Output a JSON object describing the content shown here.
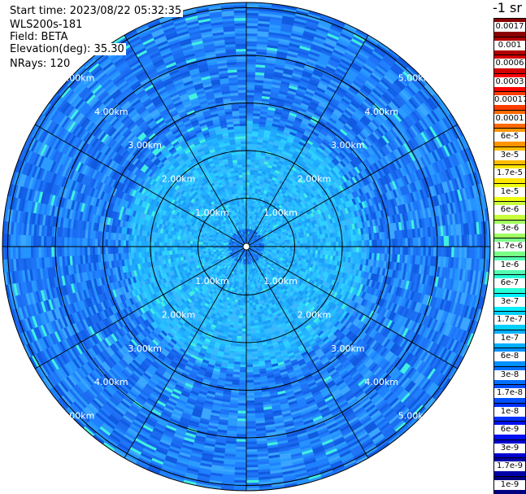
{
  "header": {
    "start_time": "Start time: 2023/08/22 05:32:35",
    "instrument": "WLS200s-181",
    "field": "Field: BETA",
    "elevation": "Elevation(deg): 35.30",
    "nrays": "NRays: 120"
  },
  "colorbar": {
    "title": "-1 sr",
    "labels": [
      "0.0017",
      "0.001",
      "0.0006",
      "0.0003",
      "0.00017",
      "0.0001",
      "6e-5",
      "3e-5",
      "1.7e-5",
      "1e-5",
      "6e-6",
      "3e-6",
      "1.7e-6",
      "1e-6",
      "6e-7",
      "3e-7",
      "1.7e-7",
      "1e-7",
      "6e-8",
      "3e-8",
      "1.7e-8",
      "1e-8",
      "6e-9",
      "3e-9",
      "1.7e-9",
      "1e-9"
    ],
    "colors": [
      "#8b0000",
      "#b30000",
      "#d40000",
      "#ff0000",
      "#ff3c00",
      "#ff6a00",
      "#ff9400",
      "#ffbd00",
      "#ffe600",
      "#f0ff10",
      "#c8ff3c",
      "#a0ff60",
      "#78ff88",
      "#50ffb0",
      "#28ffd8",
      "#00f0ff",
      "#00d0ff",
      "#00b0ff",
      "#0090ff",
      "#0070ff",
      "#0050ff",
      "#0030ff",
      "#0010f0",
      "#0000d0",
      "#0000a8",
      "#000080"
    ]
  },
  "chart_data": {
    "type": "heatmap",
    "projection": "polar (PPI)",
    "field": "BETA",
    "units": "-1 sr",
    "elevation_deg": 35.3,
    "n_rays": 120,
    "range_rings": [
      {
        "label": "1.00km"
      },
      {
        "label": "2.00km"
      },
      {
        "label": "3.00km"
      },
      {
        "label": "4.00km"
      },
      {
        "label": "5.00km"
      }
    ],
    "azimuth_spokes_deg": [
      0,
      30,
      60,
      90,
      120,
      150,
      180,
      210,
      240,
      270,
      300,
      330
    ],
    "dominant_value_by_range": [
      {
        "range_km": [
          0.0,
          0.4
        ],
        "value": "1e-8"
      },
      {
        "range_km": [
          0.4,
          2.5
        ],
        "value": "1.7e-7"
      },
      {
        "range_km": [
          2.5,
          5.2
        ],
        "value": "3e-8"
      }
    ]
  }
}
